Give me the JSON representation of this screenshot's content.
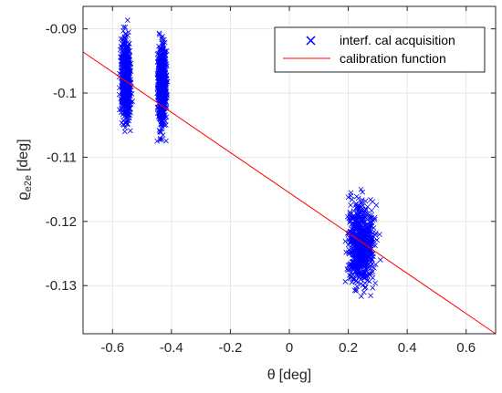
{
  "chart_data": {
    "type": "scatter",
    "title": "",
    "xlabel": {
      "symbol": "θ",
      "unit": "[deg]"
    },
    "ylabel": {
      "symbol": "ϱ",
      "subscript": "e2e",
      "unit": "[deg]"
    },
    "xlim": [
      -0.7,
      0.7
    ],
    "ylim": [
      -0.1375,
      -0.0865
    ],
    "xticks": [
      -0.6,
      -0.4,
      -0.2,
      0,
      0.2,
      0.4,
      0.6
    ],
    "xtick_labels": [
      "-0.6",
      "-0.4",
      "-0.2",
      "0",
      "0.2",
      "0.4",
      "0.6"
    ],
    "yticks": [
      -0.13,
      -0.12,
      -0.11,
      -0.1,
      -0.09
    ],
    "ytick_labels": [
      "-0.13",
      "-0.12",
      "-0.11",
      "-0.1",
      "-0.09"
    ],
    "grid": true,
    "legend_position": "top-right",
    "series": [
      {
        "name": "interf. cal acquisition",
        "kind": "scatter",
        "marker": "x",
        "color": "#0000ff",
        "clusters": [
          {
            "x_range": [
              -0.585,
              -0.525
            ],
            "y_range": [
              -0.1105,
              -0.0885
            ],
            "x_center": -0.555,
            "y_center": -0.098
          },
          {
            "x_range": [
              -0.455,
              -0.405
            ],
            "y_range": [
              -0.1105,
              -0.0895
            ],
            "x_center": -0.432,
            "y_center": -0.099
          },
          {
            "x_range": [
              0.19,
              0.35
            ],
            "y_range": [
              -0.1325,
              -0.1105
            ],
            "x_center": 0.245,
            "y_center": -0.1235
          }
        ]
      },
      {
        "name": "calibration function",
        "kind": "line",
        "color": "#ff0000",
        "x": [
          -0.7,
          0.7
        ],
        "y": [
          -0.0936,
          -0.1375
        ]
      }
    ]
  }
}
